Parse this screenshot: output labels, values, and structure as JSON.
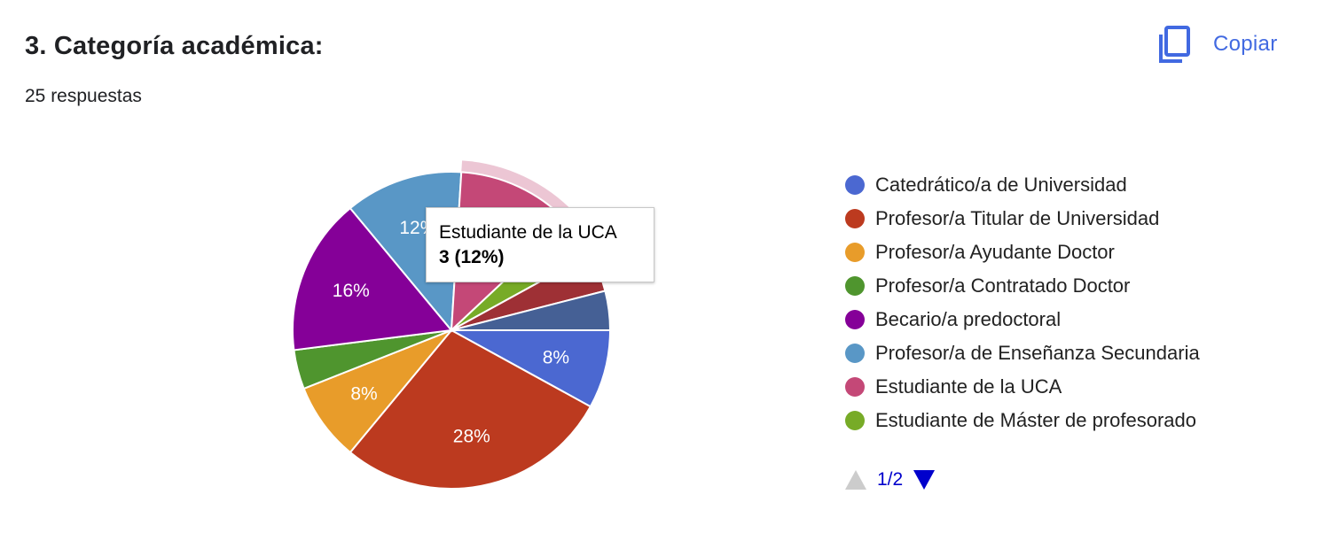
{
  "header": {
    "title": "3. Categoría académica:",
    "responses": "25 respuestas",
    "copy_label": "Copiar",
    "copy_icon": "copy-icon"
  },
  "chart_data": {
    "type": "pie",
    "categories": [
      "Catedrático/a de Universidad",
      "Profesor/a Titular de Universidad",
      "Profesor/a Ayudante Doctor",
      "Profesor/a Contratado Doctor",
      "Becario/a predoctoral",
      "Profesor/a de Enseñanza Secundaria",
      "Estudiante de la UCA",
      "Estudiante de Máster de profesorado",
      "",
      ""
    ],
    "values": [
      2,
      7,
      2,
      1,
      4,
      3,
      3,
      1,
      1,
      1
    ],
    "labels": [
      "8%",
      "28%",
      "8%",
      "",
      "16%",
      "12%",
      "",
      "",
      "",
      ""
    ],
    "colors": [
      "#4b68d1",
      "#bc3a1f",
      "#e89c2a",
      "#4f952e",
      "#850098",
      "#5997c6",
      "#c44877",
      "#77ab27",
      "#9e3035",
      "#456095"
    ],
    "highlighted_index": 6,
    "highlight_color": "#ecc6d4"
  },
  "tooltip": {
    "name": "Estudiante de la UCA",
    "value": "3 (12%)"
  },
  "legend": {
    "items": [
      {
        "label": "Catedrático/a de Universidad",
        "color": "#4b68d1"
      },
      {
        "label": "Profesor/a Titular de Universidad",
        "color": "#bc3a1f"
      },
      {
        "label": "Profesor/a Ayudante Doctor",
        "color": "#e89c2a"
      },
      {
        "label": "Profesor/a Contratado Doctor",
        "color": "#4f952e"
      },
      {
        "label": "Becario/a predoctoral",
        "color": "#850098"
      },
      {
        "label": "Profesor/a de Enseñanza Secundaria",
        "color": "#5997c6"
      },
      {
        "label": "Estudiante de la UCA",
        "color": "#c44877"
      },
      {
        "label": "Estudiante de Máster de profesorado",
        "color": "#77ab27"
      }
    ],
    "page": "1/2"
  }
}
